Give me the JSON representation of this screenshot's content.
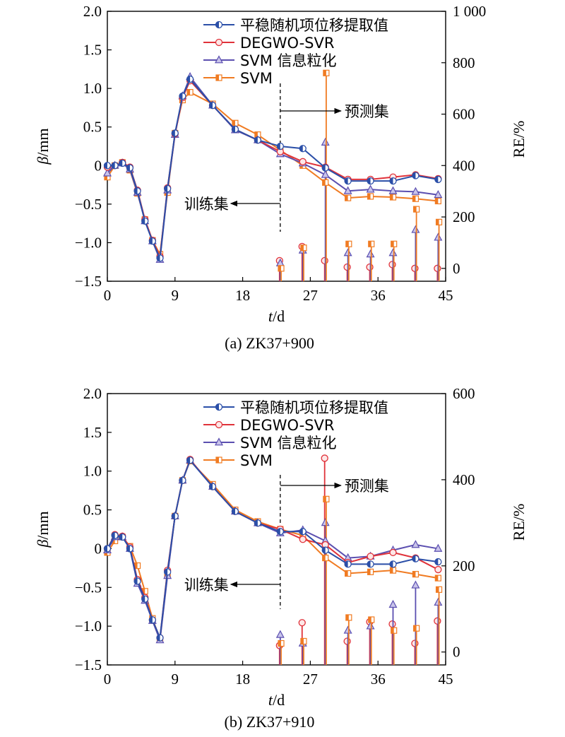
{
  "colors": {
    "measured": "#2b4fa8",
    "degwo": "#e0323a",
    "gran": "#5b4fb0",
    "svm": "#f07b22"
  },
  "chart_data": [
    {
      "type": "line",
      "caption": "(a) ZK37+900",
      "xlabel_italic": "t",
      "xlabel_rest": "/d",
      "ylabel_italic": "β",
      "ylabel_rest": "/mm",
      "y2label": "RE/%",
      "xlim": [
        0,
        45
      ],
      "ylim": [
        -1.5,
        2.0
      ],
      "y2lim": [
        -50,
        1000
      ],
      "xticks": [
        0,
        9,
        18,
        27,
        36,
        45
      ],
      "yticks": [
        -1.5,
        -1.0,
        -0.5,
        0,
        0.5,
        1.0,
        1.5,
        2.0
      ],
      "ytick_labels": [
        "−1.5",
        "−1.0",
        "−0.5",
        "0",
        "0.5",
        "1.0",
        "1.5",
        "2.0"
      ],
      "y2ticks": [
        0,
        200,
        400,
        600,
        800,
        1000
      ],
      "y2tick_labels": [
        "0",
        "200",
        "400",
        "600",
        "800",
        "1 000"
      ],
      "split_x": 23,
      "train_label": "训练集",
      "predict_label": "预测集",
      "legend": [
        "平稳随机项位移提取值",
        "DEGWO-SVR",
        "SVM 信息粒化",
        "SVM"
      ],
      "series": [
        {
          "name": "平稳随机项位移提取值",
          "x": [
            0,
            1,
            2,
            3,
            4,
            5,
            6,
            7,
            8,
            9,
            10,
            11,
            14,
            17,
            20,
            23,
            26,
            29,
            32,
            35,
            38,
            41,
            44
          ],
          "y": [
            0,
            0,
            0.03,
            -0.03,
            -0.33,
            -0.72,
            -0.98,
            -1.2,
            -0.3,
            0.42,
            0.9,
            1.12,
            0.78,
            0.47,
            0.33,
            0.25,
            0.22,
            -0.03,
            -0.2,
            -0.2,
            -0.2,
            -0.13,
            -0.18
          ]
        },
        {
          "name": "DEGWO-SVR",
          "x": [
            0,
            1,
            2,
            3,
            4,
            5,
            6,
            7,
            8,
            9,
            10,
            11,
            14,
            17,
            20,
            23,
            26,
            29,
            32,
            35,
            38,
            41,
            44
          ],
          "y": [
            -0.02,
            0.0,
            0.04,
            -0.02,
            -0.32,
            -0.7,
            -0.97,
            -1.18,
            -0.29,
            0.41,
            0.88,
            1.1,
            0.78,
            0.47,
            0.33,
            0.18,
            0.05,
            -0.02,
            -0.18,
            -0.18,
            -0.15,
            -0.12,
            -0.17
          ]
        },
        {
          "name": "SVM 信息粒化",
          "x": [
            0,
            1,
            2,
            3,
            4,
            5,
            6,
            7,
            8,
            9,
            10,
            11,
            14,
            17,
            20,
            23,
            26,
            29,
            32,
            35,
            38,
            41,
            44
          ],
          "y": [
            -0.1,
            0.0,
            0.03,
            -0.05,
            -0.35,
            -0.72,
            -0.98,
            -1.22,
            -0.32,
            0.4,
            0.9,
            1.15,
            0.78,
            0.46,
            0.33,
            0.15,
            0.03,
            -0.12,
            -0.33,
            -0.31,
            -0.33,
            -0.34,
            -0.38
          ]
        },
        {
          "name": "SVM",
          "x": [
            0,
            1,
            2,
            3,
            4,
            5,
            6,
            7,
            8,
            9,
            10,
            11,
            14,
            17,
            20,
            23,
            26,
            29,
            32,
            35,
            38,
            41,
            44
          ],
          "y": [
            -0.15,
            0.0,
            0.04,
            -0.06,
            -0.36,
            -0.7,
            -0.97,
            -1.15,
            -0.35,
            0.42,
            0.85,
            0.95,
            0.8,
            0.55,
            0.4,
            0.2,
            0.0,
            -0.22,
            -0.42,
            -0.4,
            -0.41,
            -0.43,
            -0.46
          ]
        }
      ],
      "re_series": [
        {
          "name": "DEGWO-SVR",
          "x": [
            23,
            26,
            29,
            32,
            35,
            38,
            41,
            44
          ],
          "values": [
            30,
            85,
            30,
            5,
            5,
            15,
            0,
            0
          ]
        },
        {
          "name": "SVM 信息粒化",
          "x": [
            23,
            26,
            29,
            32,
            35,
            38,
            41,
            44
          ],
          "values": [
            20,
            70,
            490,
            60,
            55,
            60,
            150,
            120
          ]
        },
        {
          "name": "SVM",
          "x": [
            23,
            26,
            29,
            32,
            35,
            38,
            41,
            44
          ],
          "values": [
            0,
            80,
            760,
            95,
            95,
            95,
            230,
            180
          ]
        }
      ]
    },
    {
      "type": "line",
      "caption": "(b) ZK37+910",
      "xlabel_italic": "t",
      "xlabel_rest": "/d",
      "ylabel_italic": "β",
      "ylabel_rest": "/mm",
      "y2label": "RE/%",
      "xlim": [
        0,
        45
      ],
      "ylim": [
        -1.5,
        2.0
      ],
      "y2lim": [
        -30,
        600
      ],
      "xticks": [
        0,
        9,
        18,
        27,
        36,
        45
      ],
      "yticks": [
        -1.5,
        -1.0,
        -0.5,
        0,
        0.5,
        1.0,
        1.5,
        2.0
      ],
      "ytick_labels": [
        "−1.5",
        "−1.0",
        "−0.5",
        "0",
        "0.5",
        "1.0",
        "1.5",
        "2.0"
      ],
      "y2ticks": [
        0,
        200,
        400,
        600
      ],
      "y2tick_labels": [
        "0",
        "200",
        "400",
        "600"
      ],
      "split_x": 23,
      "train_label": "训练集",
      "predict_label": "预测集",
      "legend": [
        "平稳随机项位移提取值",
        "DEGWO-SVR",
        "SVM 信息粒化",
        "SVM"
      ],
      "series": [
        {
          "name": "平稳随机项位移提取值",
          "x": [
            0,
            1,
            2,
            3,
            4,
            5,
            6,
            7,
            8,
            9,
            10,
            11,
            14,
            17,
            20,
            23,
            26,
            29,
            32,
            35,
            38,
            41,
            44
          ],
          "y": [
            0,
            0.17,
            0.15,
            0.0,
            -0.42,
            -0.65,
            -0.92,
            -1.15,
            -0.3,
            0.42,
            0.88,
            1.14,
            0.8,
            0.48,
            0.33,
            0.22,
            0.22,
            -0.02,
            -0.2,
            -0.2,
            -0.2,
            -0.13,
            -0.17
          ]
        },
        {
          "name": "DEGWO-SVR",
          "x": [
            0,
            1,
            2,
            3,
            4,
            5,
            6,
            7,
            8,
            9,
            10,
            11,
            14,
            17,
            20,
            23,
            26,
            29,
            32,
            35,
            38,
            41,
            44
          ],
          "y": [
            0,
            0.18,
            0.16,
            0.02,
            -0.4,
            -0.63,
            -0.92,
            -1.15,
            -0.28,
            0.42,
            0.88,
            1.15,
            0.8,
            0.48,
            0.33,
            0.25,
            0.12,
            0.05,
            -0.18,
            -0.1,
            -0.05,
            -0.12,
            -0.27
          ]
        },
        {
          "name": "SVM 信息粒化",
          "x": [
            0,
            1,
            2,
            3,
            4,
            5,
            6,
            7,
            8,
            9,
            10,
            11,
            14,
            17,
            20,
            23,
            26,
            29,
            32,
            35,
            38,
            41,
            44
          ],
          "y": [
            -0.02,
            0.15,
            0.15,
            0.0,
            -0.45,
            -0.67,
            -0.93,
            -1.18,
            -0.35,
            0.42,
            0.88,
            1.14,
            0.8,
            0.48,
            0.33,
            0.2,
            0.24,
            0.1,
            -0.12,
            -0.1,
            -0.02,
            0.05,
            0.0
          ]
        },
        {
          "name": "SVM",
          "x": [
            0,
            1,
            2,
            3,
            4,
            5,
            6,
            7,
            8,
            9,
            10,
            11,
            14,
            17,
            20,
            23,
            26,
            29,
            32,
            35,
            38,
            41,
            44
          ],
          "y": [
            -0.05,
            0.1,
            0.15,
            0.03,
            -0.22,
            -0.55,
            -0.9,
            -1.17,
            -0.33,
            0.42,
            0.88,
            1.13,
            0.83,
            0.5,
            0.35,
            0.25,
            0.17,
            -0.12,
            -0.32,
            -0.3,
            -0.28,
            -0.33,
            -0.38
          ]
        }
      ],
      "re_series": [
        {
          "name": "DEGWO-SVR",
          "x": [
            23,
            26,
            29,
            32,
            35,
            38,
            41,
            44
          ],
          "values": [
            15,
            68,
            450,
            25,
            70,
            65,
            20,
            72
          ]
        },
        {
          "name": "SVM 信息粒化",
          "x": [
            23,
            26,
            29,
            32,
            35,
            38,
            41,
            44
          ],
          "values": [
            40,
            20,
            300,
            50,
            60,
            110,
            155,
            115
          ]
        },
        {
          "name": "SVM",
          "x": [
            23,
            26,
            29,
            32,
            35,
            38,
            41,
            44
          ],
          "values": [
            20,
            25,
            355,
            80,
            75,
            50,
            55,
            145
          ]
        }
      ]
    }
  ]
}
